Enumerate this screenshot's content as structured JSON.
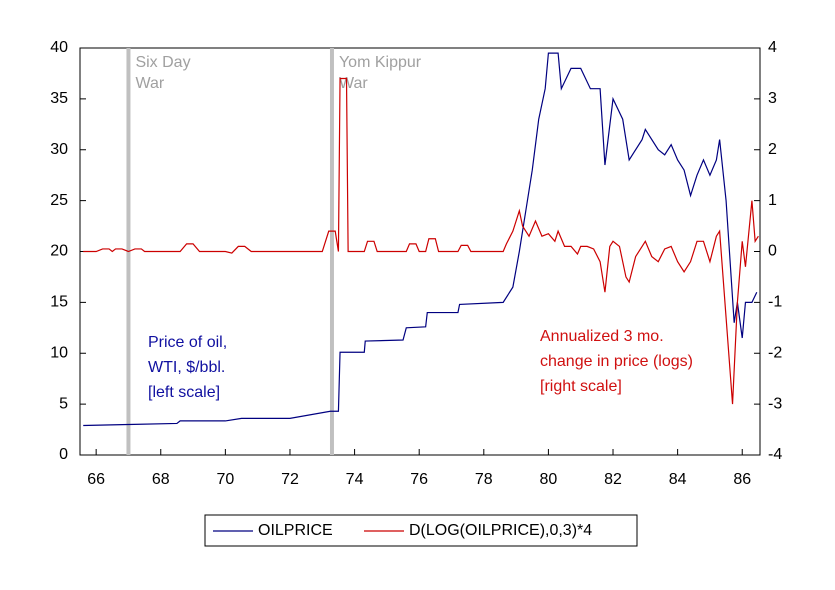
{
  "chart_data": {
    "type": "line",
    "xlim": [
      65.5,
      86.55
    ],
    "xticks": [
      66,
      68,
      70,
      72,
      74,
      76,
      78,
      80,
      82,
      84,
      86
    ],
    "ylim": [
      0,
      40
    ],
    "yticks": [
      0,
      5,
      10,
      15,
      20,
      25,
      30,
      35,
      40
    ],
    "y2lim": [
      -4,
      4
    ],
    "y2ticks": [
      -4,
      -3,
      -2,
      -1,
      0,
      1,
      2,
      3,
      4
    ],
    "events": [
      {
        "x": 67.0,
        "lines": [
          "Six Day",
          "War"
        ],
        "color": "#c0c0c0"
      },
      {
        "x": 73.3,
        "lines": [
          "Yom Kippur",
          "War"
        ],
        "color": "#c0c0c0"
      }
    ],
    "notes": [
      {
        "lines": [
          "Price of oil,",
          "WTI, $/bbl.",
          "[left scale]"
        ],
        "color": "#1010a0"
      },
      {
        "lines": [
          "Annualized 3 mo.",
          "change in price (logs)",
          "[right scale]"
        ],
        "color": "#d01010"
      }
    ],
    "series": [
      {
        "name": "OILPRICE",
        "color": "#000080",
        "x": [
          65.6,
          67.0,
          68.5,
          68.6,
          70.0,
          70.5,
          71.0,
          72.0,
          73.25,
          73.5,
          73.55,
          74.3,
          74.33,
          75.5,
          75.6,
          76.2,
          76.25,
          77.2,
          77.25,
          78.6,
          78.9,
          79.1,
          79.3,
          79.5,
          79.7,
          79.9,
          80.0,
          80.3,
          80.4,
          80.7,
          81.0,
          81.3,
          81.6,
          81.75,
          82.0,
          82.3,
          82.5,
          82.9,
          83.0,
          83.4,
          83.6,
          83.8,
          84.0,
          84.2,
          84.4,
          84.6,
          84.8,
          85.0,
          85.2,
          85.3,
          85.5,
          85.75,
          85.85,
          86.0,
          86.1,
          86.3,
          86.45
        ],
        "values": [
          2.9,
          3.0,
          3.1,
          3.35,
          3.35,
          3.6,
          3.6,
          3.6,
          4.3,
          4.3,
          10.1,
          10.1,
          11.2,
          11.3,
          12.5,
          12.6,
          14.0,
          14.0,
          14.8,
          15.0,
          16.5,
          20,
          24,
          28,
          33,
          36,
          39.5,
          39.5,
          36,
          38,
          38,
          36,
          36,
          28.5,
          35,
          33,
          29,
          31,
          32,
          30,
          29.5,
          30.5,
          29,
          28,
          25.5,
          27.5,
          29,
          27.5,
          29,
          31,
          25,
          13,
          15,
          11.5,
          15,
          15,
          16
        ]
      },
      {
        "name": "D(LOG(OILPRICE),0,3)*4",
        "color": "#cc0000",
        "axis": "y2",
        "x": [
          65.6,
          66.0,
          66.2,
          66.4,
          66.5,
          66.6,
          66.8,
          67.0,
          67.2,
          67.4,
          67.5,
          68.6,
          68.8,
          69.0,
          69.2,
          70.0,
          70.2,
          70.4,
          70.6,
          70.8,
          73.0,
          73.2,
          73.4,
          73.5,
          73.55,
          73.75,
          73.8,
          74.3,
          74.4,
          74.6,
          74.7,
          75.6,
          75.7,
          75.9,
          76.0,
          76.2,
          76.3,
          76.5,
          76.6,
          77.2,
          77.3,
          77.5,
          77.6,
          78.6,
          78.7,
          78.9,
          79.1,
          79.2,
          79.4,
          79.6,
          79.8,
          80.0,
          80.2,
          80.3,
          80.5,
          80.7,
          80.9,
          81.0,
          81.2,
          81.4,
          81.6,
          81.75,
          81.9,
          82.0,
          82.2,
          82.4,
          82.5,
          82.7,
          82.9,
          83.0,
          83.2,
          83.4,
          83.6,
          83.8,
          84.0,
          84.2,
          84.4,
          84.6,
          84.8,
          85.0,
          85.2,
          85.3,
          85.5,
          85.7,
          85.85,
          86.0,
          86.1,
          86.3,
          86.4,
          86.5
        ],
        "values": [
          0,
          0,
          0.05,
          0.05,
          0,
          0.05,
          0.05,
          0,
          0.05,
          0.05,
          0,
          0,
          0.15,
          0.15,
          0,
          0,
          -0.03,
          0.1,
          0.1,
          0,
          0,
          0.4,
          0.4,
          0,
          3.4,
          3.4,
          0,
          0,
          0.2,
          0.2,
          0,
          0,
          0.15,
          0.15,
          0,
          0,
          0.25,
          0.25,
          0,
          0,
          0.12,
          0.12,
          0,
          0,
          0.15,
          0.4,
          0.8,
          0.5,
          0.3,
          0.6,
          0.3,
          0.35,
          0.2,
          0.4,
          0.1,
          0.1,
          -0.05,
          0.1,
          0.1,
          0.05,
          -0.2,
          -0.8,
          0.1,
          0.2,
          0.1,
          -0.5,
          -0.6,
          -0.1,
          0.1,
          0.2,
          -0.1,
          -0.2,
          0.05,
          0.1,
          -0.2,
          -0.4,
          -0.2,
          0.2,
          0.2,
          -0.2,
          0.3,
          0.4,
          -1.3,
          -3.0,
          -1.0,
          0.2,
          -0.3,
          1.0,
          0.2,
          0.3
        ]
      }
    ]
  }
}
